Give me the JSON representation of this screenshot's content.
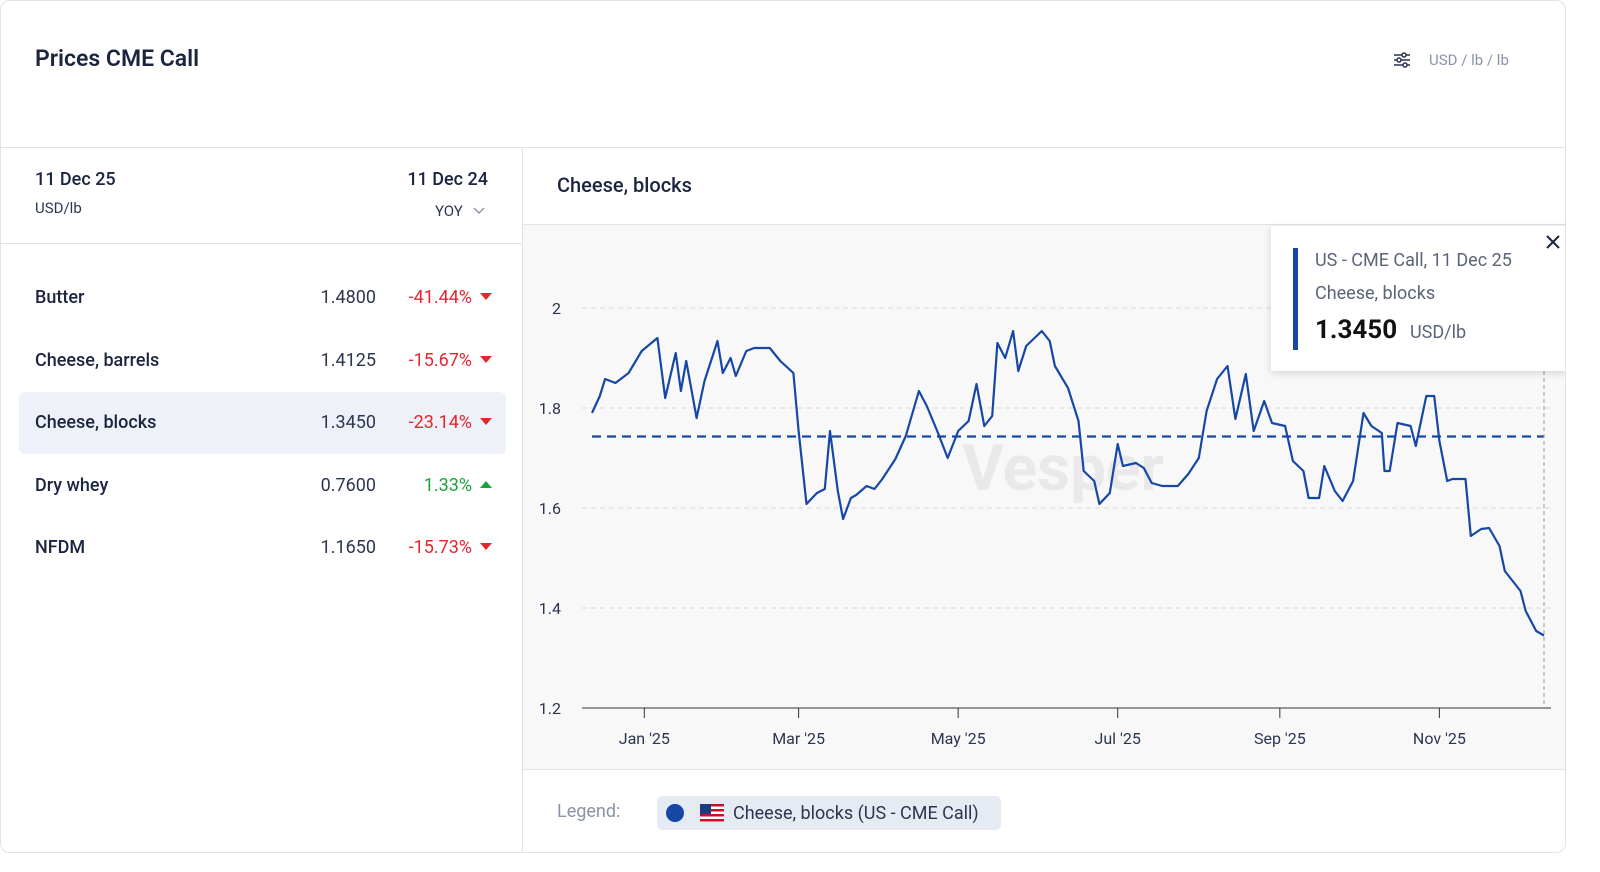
{
  "header": {
    "title": "Prices CME Call",
    "unit": "USD / lb / lb"
  },
  "table": {
    "date": "11 Dec 25",
    "unit": "USD/lb",
    "compare_date": "11 Dec 24",
    "mode": "YOY",
    "rows": [
      {
        "name": "Butter",
        "price": "1.4800",
        "change": "-41.44%"
      },
      {
        "name": "Cheese, barrels",
        "price": "1.4125",
        "change": "-15.67%"
      },
      {
        "name": "Cheese, blocks",
        "price": "1.3450",
        "change": "-23.14%"
      },
      {
        "name": "Dry whey",
        "price": "0.7600",
        "change": "1.33%"
      },
      {
        "name": "NFDM",
        "price": "1.1650",
        "change": "-15.73%"
      }
    ]
  },
  "tooltip": {
    "source": "US - CME Call, 11 Dec 25",
    "name": "Cheese, blocks",
    "value": "1.3450",
    "unit": "USD/lb"
  },
  "legend_label": "Legend:",
  "watermark": "Vesper",
  "chart_data": {
    "type": "line",
    "title": "Cheese, blocks",
    "x": [
      "2024-12-12",
      "2024-12-15",
      "2024-12-17",
      "2024-12-21",
      "2024-12-26",
      "2024-12-31",
      "2025-01-06",
      "2025-01-09",
      "2025-01-13",
      "2025-01-15",
      "2025-01-17",
      "2025-01-21",
      "2025-01-24",
      "2025-01-29",
      "2025-01-31",
      "2025-02-03",
      "2025-02-05",
      "2025-02-09",
      "2025-02-12",
      "2025-02-18",
      "2025-02-22",
      "2025-02-27",
      "2025-03-01",
      "2025-03-04",
      "2025-03-08",
      "2025-03-11",
      "2025-03-13",
      "2025-03-16",
      "2025-03-18",
      "2025-03-21",
      "2025-03-23",
      "2025-03-27",
      "2025-03-30",
      "2025-04-02",
      "2025-04-07",
      "2025-04-11",
      "2025-04-16",
      "2025-04-19",
      "2025-04-23",
      "2025-04-27",
      "2025-05-01",
      "2025-05-05",
      "2025-05-08",
      "2025-05-11",
      "2025-05-14",
      "2025-05-16",
      "2025-05-19",
      "2025-05-22",
      "2025-05-24",
      "2025-05-27",
      "2025-06-02",
      "2025-06-05",
      "2025-06-07",
      "2025-06-12",
      "2025-06-16",
      "2025-06-18",
      "2025-06-22",
      "2025-06-24",
      "2025-06-28",
      "2025-07-01",
      "2025-07-03",
      "2025-07-08",
      "2025-07-11",
      "2025-07-14",
      "2025-07-18",
      "2025-07-24",
      "2025-07-28",
      "2025-08-01",
      "2025-08-04",
      "2025-08-08",
      "2025-08-12",
      "2025-08-15",
      "2025-08-19",
      "2025-08-22",
      "2025-08-26",
      "2025-08-29",
      "2025-09-03",
      "2025-09-06",
      "2025-09-10",
      "2025-09-12",
      "2025-09-16",
      "2025-09-18",
      "2025-09-22",
      "2025-09-25",
      "2025-09-29",
      "2025-10-03",
      "2025-10-06",
      "2025-10-10",
      "2025-10-11",
      "2025-10-13",
      "2025-10-16",
      "2025-10-21",
      "2025-10-23",
      "2025-10-27",
      "2025-10-30",
      "2025-11-01",
      "2025-11-04",
      "2025-11-06",
      "2025-11-11",
      "2025-11-13",
      "2025-11-17",
      "2025-11-20",
      "2025-11-24",
      "2025-11-26",
      "2025-12-02",
      "2025-12-04",
      "2025-12-08",
      "2025-12-11"
    ],
    "series": [
      {
        "name": "Cheese, blocks (US - CME Call)",
        "color": "#1747a6",
        "values": [
          1.79,
          1.824,
          1.858,
          1.85,
          1.87,
          1.914,
          1.94,
          1.82,
          1.91,
          1.834,
          1.894,
          1.78,
          1.854,
          1.934,
          1.87,
          1.9,
          1.864,
          1.914,
          1.92,
          1.92,
          1.894,
          1.87,
          1.754,
          1.608,
          1.63,
          1.638,
          1.754,
          1.634,
          1.578,
          1.62,
          1.626,
          1.644,
          1.638,
          1.658,
          1.698,
          1.744,
          1.834,
          1.804,
          1.754,
          1.7,
          1.754,
          1.774,
          1.848,
          1.764,
          1.784,
          1.93,
          1.9,
          1.954,
          1.874,
          1.924,
          1.954,
          1.934,
          1.884,
          1.84,
          1.774,
          1.674,
          1.654,
          1.608,
          1.63,
          1.728,
          1.684,
          1.69,
          1.68,
          1.65,
          1.644,
          1.644,
          1.668,
          1.7,
          1.794,
          1.858,
          1.884,
          1.778,
          1.868,
          1.754,
          1.814,
          1.77,
          1.764,
          1.694,
          1.674,
          1.62,
          1.62,
          1.684,
          1.634,
          1.614,
          1.654,
          1.79,
          1.764,
          1.75,
          1.674,
          1.674,
          1.77,
          1.764,
          1.724,
          1.824,
          1.824,
          1.734,
          1.654,
          1.658,
          1.658,
          1.544,
          1.558,
          1.56,
          1.524,
          1.474,
          1.434,
          1.394,
          1.354,
          1.345
        ]
      }
    ],
    "reference_value": 1.743,
    "xlim": [
      "2024-12-12",
      "2025-12-11"
    ],
    "xticks": [
      {
        "value": "2025-01-01",
        "label": "Jan '25"
      },
      {
        "value": "2025-03-01",
        "label": "Mar '25"
      },
      {
        "value": "2025-05-01",
        "label": "May '25"
      },
      {
        "value": "2025-07-01",
        "label": "Jul '25"
      },
      {
        "value": "2025-09-01",
        "label": "Sep '25"
      },
      {
        "value": "2025-11-01",
        "label": "Nov '25"
      }
    ],
    "ylim": [
      1.2,
      2.0
    ],
    "yticks": [
      1.2,
      1.4,
      1.6,
      1.8,
      2
    ],
    "grid": true
  }
}
